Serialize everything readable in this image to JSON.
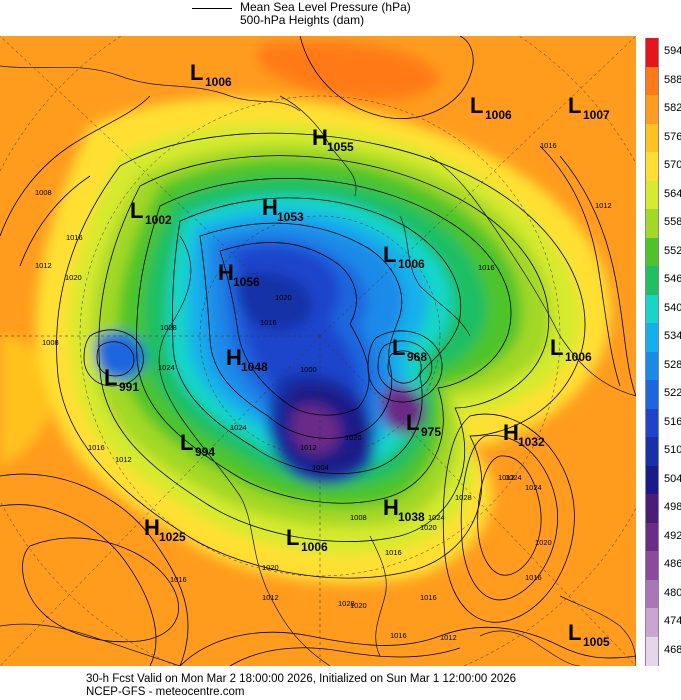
{
  "legend": {
    "mslp_label": "Mean Sea Level Pressure (hPa)",
    "heights_label": "500-hPa Heights (dam)"
  },
  "colorbar": {
    "levels": [
      "594",
      "588",
      "582",
      "576",
      "570",
      "564",
      "558",
      "552",
      "546",
      "540",
      "534",
      "528",
      "522",
      "516",
      "510",
      "504",
      "498",
      "492",
      "486",
      "480",
      "474",
      "468"
    ],
    "colors": [
      "#e8141b",
      "#ff7a16",
      "#ff9c1e",
      "#ffc21e",
      "#ffe032",
      "#d6ea2e",
      "#a3d826",
      "#4ec42a",
      "#1fbf64",
      "#17d6c8",
      "#12b0ec",
      "#1a8ae8",
      "#1c66de",
      "#1e44cc",
      "#1830a8",
      "#1a1a88",
      "#4a1e78",
      "#6a2c88",
      "#8b4a9c",
      "#a976b6",
      "#c9a6d2",
      "#e6d6ec"
    ]
  },
  "pressure_centers": [
    {
      "type": "L",
      "value": "1006"
    },
    {
      "type": "L",
      "value": "1006"
    },
    {
      "type": "L",
      "value": "1007"
    },
    {
      "type": "H",
      "value": "1055"
    },
    {
      "type": "L",
      "value": "1002"
    },
    {
      "type": "H",
      "value": "1053"
    },
    {
      "type": "L",
      "value": "1006"
    },
    {
      "type": "H",
      "value": "1056"
    },
    {
      "type": "L",
      "value": "968"
    },
    {
      "type": "L",
      "value": "1006"
    },
    {
      "type": "L",
      "value": "991"
    },
    {
      "type": "H",
      "value": "1048"
    },
    {
      "type": "L",
      "value": "975"
    },
    {
      "type": "H",
      "value": "1032"
    },
    {
      "type": "L",
      "value": "994"
    },
    {
      "type": "H",
      "value": "1038"
    },
    {
      "type": "H",
      "value": "1025"
    },
    {
      "type": "L",
      "value": "1006"
    },
    {
      "type": "L",
      "value": "1005"
    }
  ],
  "isobar_labels": [
    "1012",
    "1016",
    "1008",
    "1012",
    "1016",
    "1020",
    "1024",
    "1028",
    "1016",
    "1012",
    "1008",
    "1004",
    "1000",
    "1012",
    "1016",
    "1020",
    "1024",
    "1028",
    "1024",
    "1020",
    "1016",
    "1012",
    "1028",
    "1020",
    "1016",
    "1012",
    "1016",
    "1020",
    "1024",
    "1016",
    "1012",
    "1008",
    "1016",
    "1020",
    "1016",
    "1020",
    "1024"
  ],
  "footer": {
    "line1": "30-h Fcst Valid on Mon Mar  2 18:00:00 2026, Initialized on Sun Mar  1 12:00:00 2026",
    "line2": "NCEP-GFS  - meteocentre.com"
  }
}
